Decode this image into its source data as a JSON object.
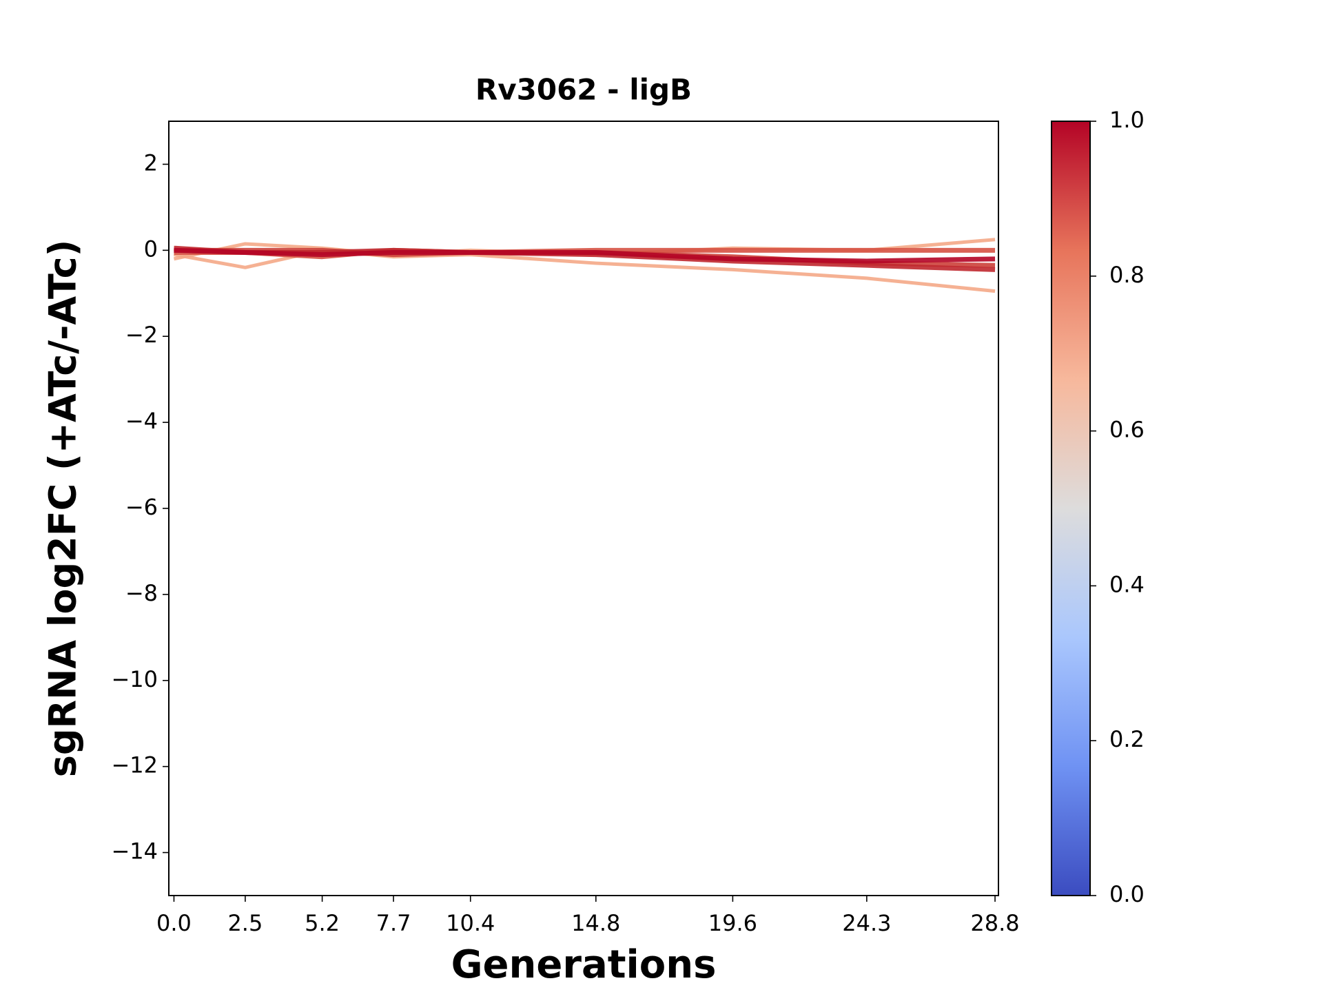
{
  "chart_data": {
    "type": "line",
    "title": "Rv3062 - ligB",
    "xlabel": "Generations",
    "ylabel": "sgRNA log2FC (+ATc/-ATc)",
    "x": [
      0,
      2.5,
      5.2,
      7.7,
      10.4,
      14.8,
      19.6,
      24.3,
      28.8
    ],
    "xlim": [
      -0.18,
      28.92
    ],
    "xticks": [
      {
        "value": 0,
        "label": "0.0"
      },
      2.5,
      5.2,
      7.7,
      10.4,
      14.8,
      19.6,
      24.3,
      28.8
    ],
    "ylim": [
      -15,
      3
    ],
    "yticks": [
      {
        "value": -14,
        "label": "−14"
      },
      {
        "value": -12,
        "label": "−12"
      },
      {
        "value": -10,
        "label": "−10"
      },
      {
        "value": -8,
        "label": "−8"
      },
      {
        "value": -6,
        "label": "−6"
      },
      {
        "value": -4,
        "label": "−4"
      },
      {
        "value": -2,
        "label": "−2"
      },
      0,
      2
    ],
    "series": [
      {
        "color": "#f4a987",
        "values": [
          -0.2,
          0.15,
          0.05,
          -0.1,
          0.0,
          -0.1,
          0.05,
          0.0,
          0.25
        ]
      },
      {
        "color": "#f4a987",
        "values": [
          -0.1,
          -0.4,
          0.0,
          -0.15,
          -0.1,
          -0.3,
          -0.45,
          -0.65,
          -0.95
        ]
      },
      {
        "color": "#d65244",
        "values": [
          -0.05,
          -0.05,
          -0.15,
          0.0,
          -0.05,
          0.0,
          0.0,
          0.0,
          0.0
        ]
      },
      {
        "color": "#cc403a",
        "values": [
          0.0,
          0.0,
          0.0,
          -0.1,
          -0.05,
          -0.05,
          -0.15,
          -0.3,
          -0.35
        ]
      },
      {
        "color": "#c0282f",
        "values": [
          0.05,
          -0.05,
          -0.05,
          0.0,
          -0.05,
          -0.1,
          -0.25,
          -0.35,
          -0.45
        ]
      },
      {
        "color": "#b40426",
        "values": [
          0.0,
          -0.05,
          -0.1,
          -0.05,
          -0.05,
          -0.05,
          -0.2,
          -0.25,
          -0.2
        ]
      }
    ],
    "colorbar": {
      "lim": [
        0,
        1
      ],
      "ticks": [
        {
          "value": 0,
          "label": "0.0"
        },
        {
          "value": 0.2,
          "label": "0.2"
        },
        {
          "value": 0.4,
          "label": "0.4"
        },
        {
          "value": 0.6,
          "label": "0.6"
        },
        {
          "value": 0.8,
          "label": "0.8"
        },
        {
          "value": 1,
          "label": "1.0"
        }
      ],
      "colors": [
        "#3b4cc0",
        "#6f92f3",
        "#aac7fd",
        "#dddcdc",
        "#f7b89c",
        "#e7745b",
        "#b40426"
      ]
    }
  }
}
